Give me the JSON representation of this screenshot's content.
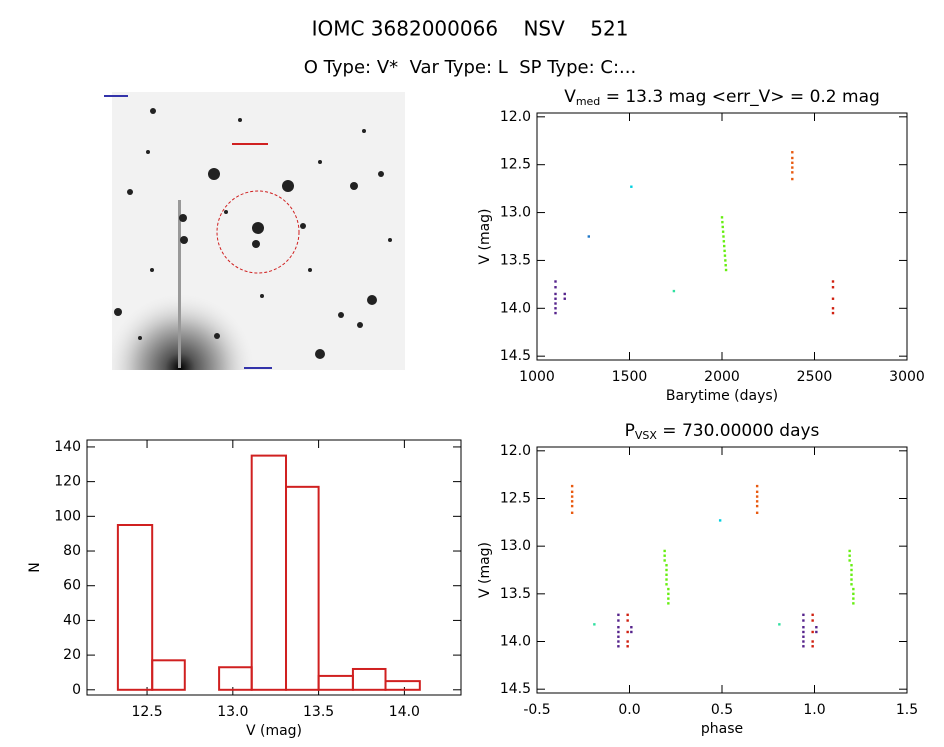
{
  "header": {
    "title": "IOMC 3682000066    NSV    521",
    "subtitle": "O Type: V*  Var Type: L  SP Type: C:..."
  },
  "chart_data": [
    {
      "type": "scatter",
      "title": "V",
      "title_subscript": "med",
      "title_rest": " = 13.3 mag <err_V> = 0.2 mag",
      "xlabel": "Barytime (days)",
      "ylabel": "V (mag)",
      "xlim": [
        1000,
        3000
      ],
      "xticks": [
        1000,
        1500,
        2000,
        2500,
        3000
      ],
      "ylim": [
        14.54,
        11.96
      ],
      "yticks": [
        {
          "value": 12,
          "label": "12.0"
        },
        {
          "value": 12.5,
          "label": "12.5"
        },
        {
          "value": 13,
          "label": "13.0"
        },
        {
          "value": 13.5,
          "label": "13.5"
        },
        {
          "value": 14,
          "label": "14.0"
        },
        {
          "value": 14.5,
          "label": "14.5"
        }
      ],
      "series": [
        {
          "color": "#55238c",
          "x": [
            1100,
            1100,
            1100,
            1100,
            1100,
            1100,
            1100,
            1150,
            1150
          ],
          "values": [
            13.72,
            13.78,
            13.85,
            13.9,
            13.95,
            14.0,
            14.05,
            13.85,
            13.9
          ]
        },
        {
          "color": "#1f78c8",
          "x": [
            1280
          ],
          "values": [
            13.25
          ]
        },
        {
          "color": "#00d0e0",
          "x": [
            1510
          ],
          "values": [
            12.73
          ]
        },
        {
          "color": "#30e0a0",
          "x": [
            1740
          ],
          "values": [
            13.82
          ]
        },
        {
          "color": "#66ee11",
          "x": [
            2000,
            2002,
            2004,
            2006,
            2008,
            2010,
            2012,
            2014,
            2016,
            2018,
            2020,
            2022
          ],
          "values": [
            13.05,
            13.1,
            13.15,
            13.2,
            13.25,
            13.3,
            13.35,
            13.4,
            13.45,
            13.5,
            13.55,
            13.6
          ]
        },
        {
          "color": "#e85a10",
          "x": [
            2380,
            2380,
            2380,
            2380,
            2380,
            2380
          ],
          "values": [
            12.37,
            12.43,
            12.48,
            12.53,
            12.58,
            12.65
          ]
        },
        {
          "color": "#d02010",
          "x": [
            2600,
            2600,
            2600,
            2600,
            2600
          ],
          "values": [
            13.72,
            13.78,
            13.9,
            14.0,
            14.05
          ]
        }
      ]
    },
    {
      "type": "histogram",
      "xlabel": "V (mag)",
      "ylabel": "N",
      "color": "#d02020",
      "bins": [
        12.33,
        12.53,
        12.72,
        12.92,
        13.11,
        13.31,
        13.5,
        13.7,
        13.89,
        14.09
      ],
      "counts": [
        95,
        17,
        0,
        13,
        135,
        117,
        8,
        12,
        5
      ],
      "xlim": [
        12.15,
        14.33
      ],
      "xticks": [
        12.5,
        {
          "value": 13,
          "label": "13.0"
        },
        13.5,
        {
          "value": 14,
          "label": "14.0"
        }
      ],
      "ylim": [
        -3,
        144
      ],
      "yticks": [
        0,
        20,
        40,
        60,
        80,
        100,
        120,
        140
      ]
    },
    {
      "type": "scatter",
      "title": "P",
      "title_subscript": "VSX",
      "title_rest": " = 730.00000 days",
      "xlabel": "phase",
      "ylabel": "V (mag)",
      "xlim": [
        -0.5,
        1.5
      ],
      "xticks": [
        -0.5,
        {
          "value": 0,
          "label": "0.0"
        },
        0.5,
        {
          "value": 1,
          "label": "1.0"
        },
        1.5
      ],
      "ylim": [
        14.54,
        11.96
      ],
      "yticks": [
        {
          "value": 12,
          "label": "12.0"
        },
        {
          "value": 12.5,
          "label": "12.5"
        },
        {
          "value": 13,
          "label": "13.0"
        },
        {
          "value": 13.5,
          "label": "13.5"
        },
        {
          "value": 14,
          "label": "14.0"
        },
        {
          "value": 14.5,
          "label": "14.5"
        }
      ],
      "series": [
        {
          "color": "#55238c",
          "x": [
            -0.06,
            -0.06,
            -0.06,
            -0.06,
            -0.06,
            -0.06,
            -0.06,
            0.01,
            0.01,
            0.94,
            0.94,
            0.94,
            0.94,
            0.94,
            0.94,
            0.94,
            1.01,
            1.01
          ],
          "values": [
            13.72,
            13.78,
            13.85,
            13.9,
            13.95,
            14.0,
            14.05,
            13.85,
            13.9,
            13.72,
            13.78,
            13.85,
            13.9,
            13.95,
            14.0,
            14.05,
            13.85,
            13.9
          ]
        },
        {
          "color": "#00d0e0",
          "x": [
            0.49
          ],
          "values": [
            12.73
          ]
        },
        {
          "color": "#30e0a0",
          "x": [
            -0.19,
            0.81
          ],
          "values": [
            13.82,
            13.82
          ]
        },
        {
          "color": "#66ee11",
          "x": [
            0.19,
            0.19,
            0.19,
            0.2,
            0.2,
            0.2,
            0.2,
            0.2,
            0.21,
            0.21,
            0.21,
            0.21,
            1.19,
            1.19,
            1.19,
            1.2,
            1.2,
            1.2,
            1.2,
            1.2,
            1.21,
            1.21,
            1.21,
            1.21
          ],
          "values": [
            13.05,
            13.1,
            13.15,
            13.2,
            13.25,
            13.3,
            13.35,
            13.4,
            13.45,
            13.5,
            13.55,
            13.6,
            13.05,
            13.1,
            13.15,
            13.2,
            13.25,
            13.3,
            13.35,
            13.4,
            13.45,
            13.5,
            13.55,
            13.6
          ]
        },
        {
          "color": "#e85a10",
          "x": [
            -0.31,
            -0.31,
            -0.31,
            -0.31,
            -0.31,
            -0.31,
            0.69,
            0.69,
            0.69,
            0.69,
            0.69,
            0.69
          ],
          "values": [
            12.37,
            12.43,
            12.48,
            12.53,
            12.58,
            12.65,
            12.37,
            12.43,
            12.48,
            12.53,
            12.58,
            12.65
          ]
        },
        {
          "color": "#d02010",
          "x": [
            -0.01,
            -0.01,
            -0.01,
            -0.01,
            -0.01,
            0.99,
            0.99,
            0.99,
            0.99,
            0.99
          ],
          "values": [
            13.72,
            13.78,
            13.9,
            14.0,
            14.05,
            13.72,
            13.78,
            13.9,
            14.0,
            14.05
          ]
        }
      ]
    }
  ]
}
